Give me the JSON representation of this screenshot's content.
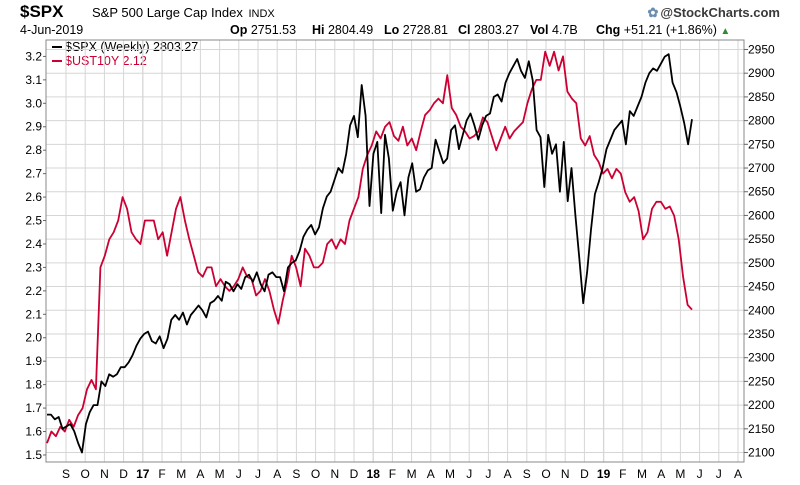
{
  "header": {
    "symbol": "$SPX",
    "name": "S&P 500 Large Cap Index",
    "exchange": "INDX",
    "brand": "@StockCharts.com",
    "brand_mark": "✿",
    "date": "4-Jun-2019",
    "quote": {
      "op_label": "Op",
      "op": "2751.53",
      "hi_label": "Hi",
      "hi": "2804.49",
      "lo_label": "Lo",
      "lo": "2728.81",
      "cl_label": "Cl",
      "cl": "2803.27",
      "vol_label": "Vol",
      "vol": "4.7B",
      "chg_label": "Chg",
      "chg": "+51.21 (+1.86%)",
      "chg_arrow": "▲"
    }
  },
  "legend": {
    "spx": "$SPX (Weekly) 2803.27",
    "ust": "$UST10Y 2.12"
  },
  "colors": {
    "spx": "#000000",
    "ust": "#cc0033",
    "grid": "#d6d6d6",
    "up": "#2e8b2e"
  },
  "chart_data": {
    "type": "line",
    "x_tick_labels": [
      "S",
      "O",
      "N",
      "D",
      "17",
      "F",
      "M",
      "A",
      "M",
      "J",
      "J",
      "A",
      "S",
      "O",
      "N",
      "D",
      "18",
      "F",
      "M",
      "A",
      "M",
      "J",
      "J",
      "A",
      "S",
      "O",
      "N",
      "D",
      "19",
      "F",
      "M",
      "A",
      "M",
      "J",
      "J",
      "A"
    ],
    "left_axis": {
      "ticks": [
        "3.2",
        "3.1",
        "3.0",
        "2.9",
        "2.8",
        "2.7",
        "2.6",
        "2.5",
        "2.4",
        "2.3",
        "2.2",
        "2.1",
        "2.0",
        "1.9",
        "1.8",
        "1.7",
        "1.6",
        "1.5"
      ],
      "ylim": [
        1.47,
        3.27
      ]
    },
    "right_axis": {
      "ticks": [
        "2950",
        "2900",
        "2850",
        "2800",
        "2750",
        "2700",
        "2650",
        "2600",
        "2550",
        "2500",
        "2450",
        "2400",
        "2350",
        "2300",
        "2250",
        "2200",
        "2150",
        "2100"
      ],
      "ylim": [
        2080,
        2970
      ]
    },
    "grid": true,
    "series": [
      {
        "name": "$SPX (Weekly) 2803.27",
        "axis": "right",
        "values": [
          2180,
          2180,
          2170,
          2175,
          2150,
          2155,
          2160,
          2145,
          2120,
          2100,
          2160,
          2185,
          2200,
          2200,
          2250,
          2240,
          2265,
          2260,
          2265,
          2280,
          2280,
          2290,
          2305,
          2325,
          2340,
          2350,
          2355,
          2335,
          2330,
          2345,
          2320,
          2340,
          2380,
          2390,
          2380,
          2395,
          2370,
          2390,
          2400,
          2410,
          2400,
          2385,
          2415,
          2420,
          2430,
          2420,
          2460,
          2455,
          2440,
          2455,
          2445,
          2470,
          2475,
          2460,
          2480,
          2455,
          2440,
          2475,
          2480,
          2470,
          2470,
          2440,
          2490,
          2500,
          2505,
          2525,
          2555,
          2570,
          2580,
          2560,
          2575,
          2615,
          2640,
          2650,
          2675,
          2700,
          2690,
          2730,
          2790,
          2810,
          2765,
          2875,
          2810,
          2620,
          2730,
          2755,
          2605,
          2770,
          2720,
          2610,
          2650,
          2670,
          2600,
          2680,
          2710,
          2650,
          2655,
          2680,
          2695,
          2700,
          2760,
          2735,
          2710,
          2720,
          2780,
          2790,
          2740,
          2770,
          2800,
          2815,
          2790,
          2760,
          2790,
          2810,
          2815,
          2850,
          2855,
          2840,
          2880,
          2900,
          2915,
          2930,
          2905,
          2890,
          2925,
          2885,
          2780,
          2765,
          2660,
          2770,
          2730,
          2750,
          2650,
          2755,
          2630,
          2700,
          2600,
          2510,
          2415,
          2480,
          2570,
          2645,
          2670,
          2700,
          2740,
          2760,
          2780,
          2790,
          2800,
          2750,
          2820,
          2810,
          2830,
          2850,
          2880,
          2900,
          2910,
          2905,
          2920,
          2935,
          2940,
          2880,
          2860,
          2830,
          2795,
          2750,
          2803
        ]
      },
      {
        "name": "$UST10Y 2.12",
        "axis": "left",
        "values": [
          1.55,
          1.6,
          1.58,
          1.62,
          1.6,
          1.65,
          1.62,
          1.67,
          1.7,
          1.78,
          1.82,
          1.78,
          2.3,
          2.35,
          2.42,
          2.45,
          2.5,
          2.6,
          2.55,
          2.45,
          2.42,
          2.4,
          2.5,
          2.5,
          2.5,
          2.42,
          2.45,
          2.35,
          2.45,
          2.55,
          2.6,
          2.5,
          2.42,
          2.35,
          2.28,
          2.26,
          2.3,
          2.3,
          2.22,
          2.25,
          2.22,
          2.2,
          2.22,
          2.25,
          2.3,
          2.26,
          2.25,
          2.18,
          2.2,
          2.25,
          2.2,
          2.12,
          2.06,
          2.16,
          2.24,
          2.35,
          2.3,
          2.22,
          2.38,
          2.35,
          2.3,
          2.3,
          2.32,
          2.4,
          2.42,
          2.38,
          2.42,
          2.4,
          2.5,
          2.55,
          2.6,
          2.72,
          2.78,
          2.82,
          2.88,
          2.85,
          2.9,
          2.92,
          2.86,
          2.84,
          2.9,
          2.82,
          2.85,
          2.8,
          2.88,
          2.95,
          2.97,
          3.0,
          3.02,
          3.0,
          3.12,
          2.98,
          2.95,
          2.9,
          2.88,
          2.85,
          2.86,
          2.88,
          2.94,
          2.92,
          2.86,
          2.8,
          2.85,
          2.9,
          2.85,
          2.88,
          2.9,
          2.92,
          3.0,
          3.06,
          3.1,
          3.1,
          3.22,
          3.16,
          3.22,
          3.14,
          3.2,
          3.05,
          3.02,
          3.0,
          2.85,
          2.82,
          2.86,
          2.78,
          2.75,
          2.7,
          2.72,
          2.68,
          2.72,
          2.7,
          2.62,
          2.58,
          2.6,
          2.54,
          2.42,
          2.45,
          2.55,
          2.58,
          2.58,
          2.55,
          2.56,
          2.52,
          2.42,
          2.26,
          2.14,
          2.12
        ]
      }
    ]
  }
}
